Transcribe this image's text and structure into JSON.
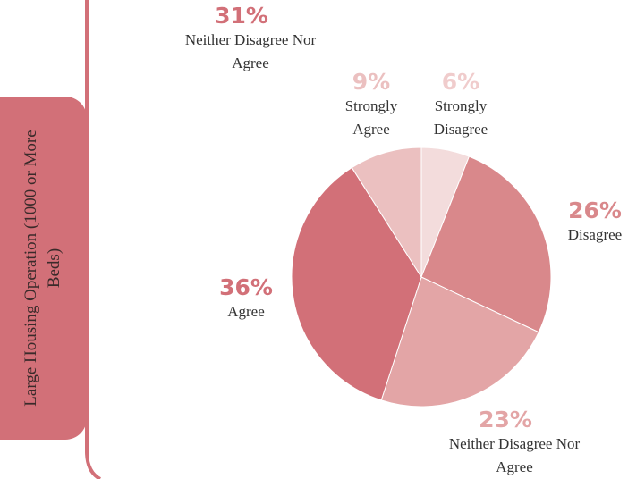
{
  "panel_label": "Large Housing Operation (1000 or More Beds)",
  "chart_data": [
    {
      "type": "pie",
      "categories": [
        "Neither Disagree Nor Agree"
      ],
      "values": [
        31
      ],
      "value_labels": [
        "31%"
      ],
      "colors": [
        "#d27078"
      ]
    },
    {
      "type": "pie",
      "categories": [
        "Strongly Disagree",
        "Disagree",
        "Neither Disagree Nor Agree",
        "Agree",
        "Strongly Agree"
      ],
      "values": [
        6,
        26,
        23,
        36,
        9
      ],
      "value_labels": [
        "6%",
        "26%",
        "23%",
        "36%",
        "9%"
      ],
      "colors": [
        "#f3dcdc",
        "#d9888b",
        "#e3a5a6",
        "#d27078",
        "#ebc0c0"
      ]
    }
  ]
}
